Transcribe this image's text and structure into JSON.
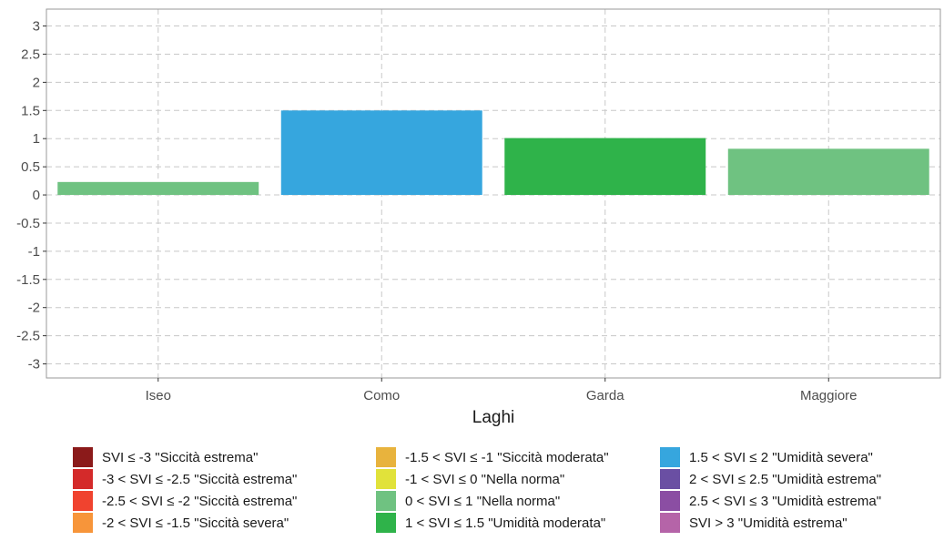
{
  "chart_data": {
    "type": "bar",
    "title": "",
    "xlabel": "Laghi",
    "ylabel": "",
    "categories": [
      "Iseo",
      "Como",
      "Garda",
      "Maggiore"
    ],
    "values": [
      0.23,
      1.5,
      1.01,
      0.82
    ],
    "bar_colors": [
      "#6fc281",
      "#36a6de",
      "#2fb34a",
      "#6fc281"
    ],
    "ylim": [
      -3.25,
      3.3
    ],
    "yticks": [
      3,
      2.5,
      2,
      1.5,
      1,
      0.5,
      0,
      -0.5,
      -1,
      -1.5,
      -2,
      -2.5,
      -3
    ],
    "ytick_labels": [
      "3",
      "2.5",
      "2",
      "1.5",
      "1",
      "0.5",
      "0",
      "-0.5",
      "-1",
      "-1.5",
      "-2",
      "-2.5",
      "-3"
    ],
    "grid": true,
    "legend_position": "bottom",
    "legend": [
      {
        "label": "SVI ≤ -3 \"Siccità estrema\"",
        "color": "#8b1a1a"
      },
      {
        "label": "-3 <  SVI ≤ -2.5 \"Siccità estrema\"",
        "color": "#d42a2a"
      },
      {
        "label": "-2.5 <  SVI ≤ -2 \"Siccità estrema\"",
        "color": "#f0432f"
      },
      {
        "label": "-2 <  SVI ≤ -1.5 \"Siccità severa\"",
        "color": "#f7953a"
      },
      {
        "label": "-1.5 <  SVI ≤ -1 \"Siccità moderata\"",
        "color": "#e8b33d"
      },
      {
        "label": "-1 <  SVI ≤ 0 \"Nella norma\"",
        "color": "#e1e23a"
      },
      {
        "label": "0 <  SVI ≤ 1 \"Nella norma\"",
        "color": "#6fc281"
      },
      {
        "label": "1 <  SVI ≤ 1.5 \"Umidità moderata\"",
        "color": "#2fb34a"
      },
      {
        "label": "1.5 <  SVI ≤ 2 \"Umidità severa\"",
        "color": "#36a6de"
      },
      {
        "label": "2 <  SVI ≤ 2.5 \"Umidità estrema\"",
        "color": "#6a4fa3"
      },
      {
        "label": "2.5 <  SVI ≤ 3 \"Umidità estrema\"",
        "color": "#8b4ea3"
      },
      {
        "label": "SVI > 3 \"Umidità estrema\"",
        "color": "#b564a8"
      }
    ]
  }
}
